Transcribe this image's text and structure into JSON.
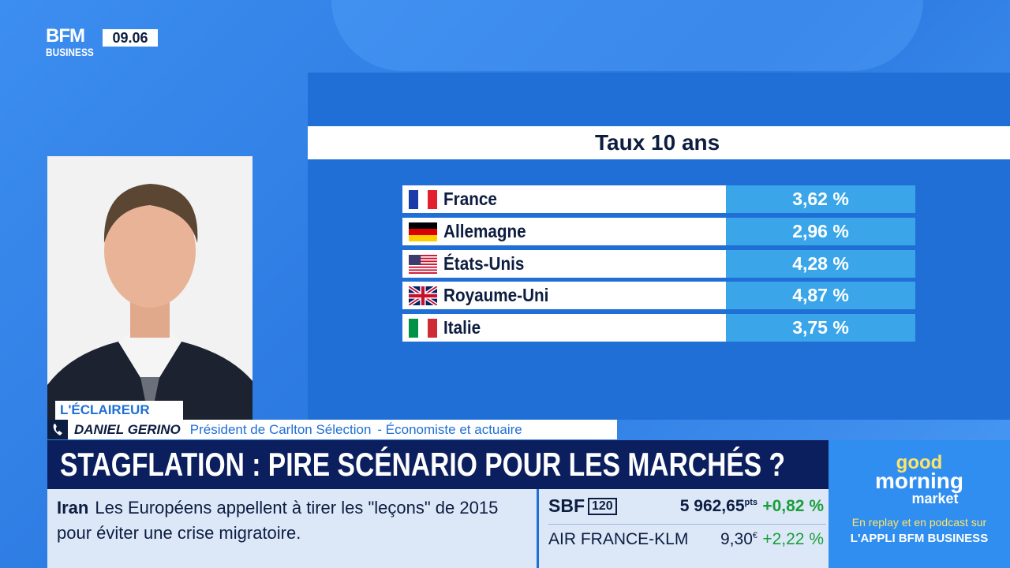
{
  "logo": {
    "line1": "BFM",
    "line2": "BUSINESS"
  },
  "clock": "09.06",
  "table": {
    "title": "Taux 10 ans",
    "rows": [
      [
        "France",
        "3,62 %"
      ],
      [
        "Allemagne",
        "2,96 %"
      ],
      [
        "États-Unis",
        "4,28 %"
      ],
      [
        "Royaume-Uni",
        "4,87 %"
      ],
      [
        "Italie",
        "3,75 %"
      ]
    ]
  },
  "guest": {
    "tag": "L'ÉCLAIREUR",
    "name": "DANIEL GERINO",
    "role": "Président de Carlton Sélection",
    "role2": "- Économiste et actuaire"
  },
  "headline": "STAGFLATION : PIRE SCÉNARIO POUR LES MARCHÉS ?",
  "ticker": {
    "topic": "Iran",
    "text": "Les Européens appellent à tirer les \"leçons\" de 2015 pour éviter une crise migratoire."
  },
  "markets": [
    {
      "name": "SBF",
      "badge": "120",
      "value": "5 962,65",
      "unit": "pts",
      "change": "+0,82 %"
    },
    {
      "name": "AIR FRANCE-KLM",
      "value": "9,30",
      "unit": "€",
      "change": "+2,22 %"
    }
  ],
  "promo": {
    "line1": "good",
    "line2": "morning",
    "line3": "market",
    "sub1": "En replay et en podcast sur",
    "sub2": "L'APPLI BFM BUSINESS"
  }
}
